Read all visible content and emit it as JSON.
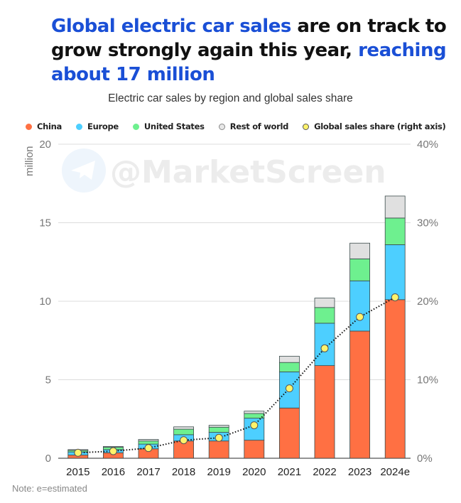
{
  "headline": {
    "part1_highlight": "Global electric car sales",
    "part2": " are on track to grow strongly again this year, ",
    "part3_highlight": "reaching about 17 million"
  },
  "watermark": "@MarketScreen",
  "note": "Note:  e=estimated",
  "colors": {
    "highlight": "#1a4fd6",
    "china": "#ff7043",
    "europe": "#4dcfff",
    "united_states": "#6ef08f",
    "rest_of_world": "#e0e0e0",
    "share_marker": "#fff36b"
  },
  "chart_data": {
    "type": "bar",
    "stacked": true,
    "title": "Electric car sales by region and global sales share",
    "xlabel": "",
    "ylabel": "million",
    "y2label": "Global sales share (right axis)",
    "categories": [
      "2015",
      "2016",
      "2017",
      "2018",
      "2019",
      "2020",
      "2021",
      "2022",
      "2023",
      "2024e"
    ],
    "ylim": [
      0,
      20
    ],
    "yticks": [
      0,
      5,
      10,
      15,
      20
    ],
    "y2lim": [
      0,
      40
    ],
    "y2ticks": [
      "0%",
      "10%",
      "20%",
      "30%",
      "40%"
    ],
    "grid": true,
    "legend_position": "top",
    "series": [
      {
        "name": "China",
        "key": "china",
        "values": [
          0.2,
          0.35,
          0.6,
          1.1,
          1.1,
          1.15,
          3.2,
          5.9,
          8.1,
          10.1
        ]
      },
      {
        "name": "Europe",
        "key": "europe",
        "values": [
          0.2,
          0.2,
          0.3,
          0.4,
          0.55,
          1.4,
          2.3,
          2.7,
          3.2,
          3.5
        ]
      },
      {
        "name": "United States",
        "key": "united_states",
        "values": [
          0.1,
          0.15,
          0.2,
          0.35,
          0.33,
          0.3,
          0.6,
          1.0,
          1.4,
          1.7
        ]
      },
      {
        "name": "Rest of world",
        "key": "rest_of_world",
        "values": [
          0.05,
          0.05,
          0.1,
          0.15,
          0.12,
          0.15,
          0.4,
          0.6,
          1.0,
          1.4
        ]
      }
    ],
    "line_series": {
      "name": "Global sales share (right axis)",
      "axis": "right",
      "unit": "%",
      "values": [
        0.7,
        0.9,
        1.3,
        2.3,
        2.6,
        4.2,
        8.9,
        14.0,
        18.0,
        20.5
      ]
    },
    "legend": [
      "China",
      "Europe",
      "United States",
      "Rest of world",
      "Global sales share (right axis)"
    ],
    "note": "e=estimated"
  }
}
